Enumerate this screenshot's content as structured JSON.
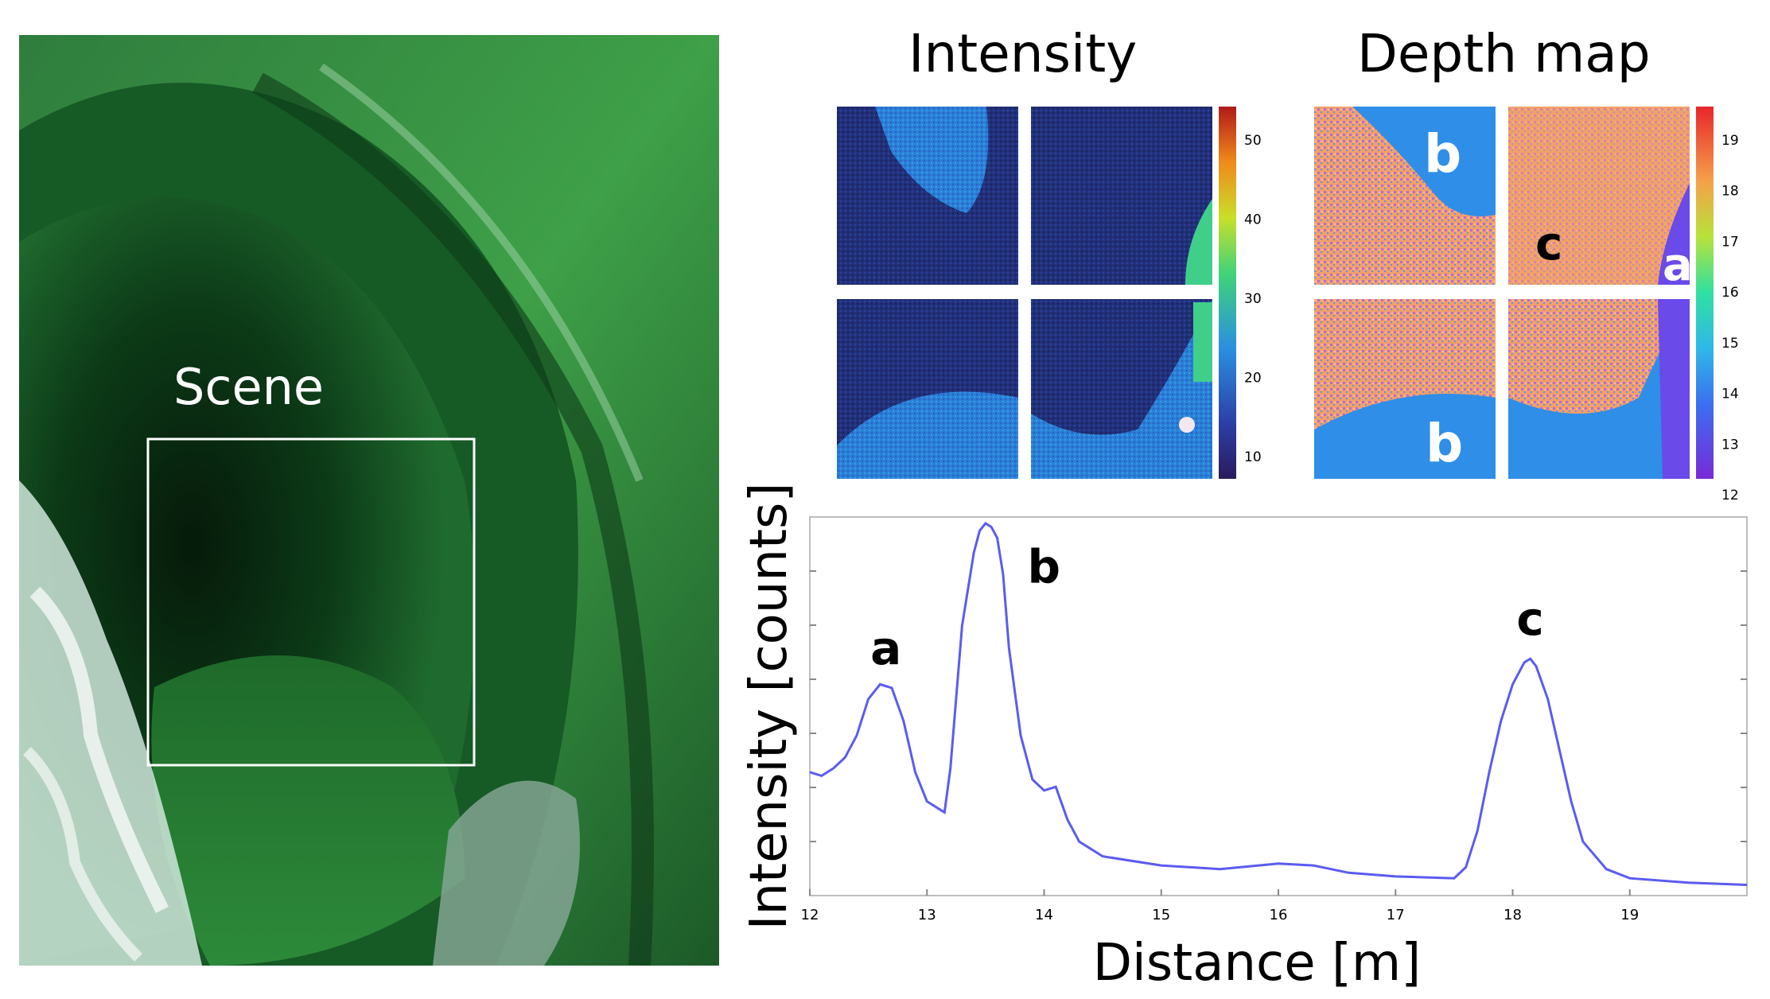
{
  "scene": {
    "label": "Scene",
    "description_colors": {
      "deep": "#0a2a12",
      "mid": "#1f6a2e",
      "bright": "#3fae4a",
      "foam": "#e9f5ef"
    }
  },
  "titles": {
    "intensity": "Intensity",
    "depth": "Depth map"
  },
  "intensity_colorbar": {
    "ticks": [
      "50",
      "40",
      "30",
      "20",
      "10"
    ]
  },
  "depth_colorbar": {
    "ticks": [
      "19",
      "18",
      "17",
      "16",
      "15",
      "14",
      "13",
      "12"
    ]
  },
  "depth_labels": {
    "tl": "b",
    "tr_c": "c",
    "tr_a": "a",
    "bl": "b"
  },
  "chart_data": {
    "type": "line",
    "title": "",
    "xlabel": "Distance [m]",
    "ylabel": "Intensity [counts]",
    "xlim": [
      12,
      20
    ],
    "ylim": [
      0,
      1
    ],
    "x_ticks": [
      "12",
      "13",
      "14",
      "15",
      "16",
      "17",
      "18",
      "19"
    ],
    "series_color": "#5b5bf0",
    "peaks": [
      {
        "label": "a",
        "x": 12.65
      },
      {
        "label": "b",
        "x": 13.55
      },
      {
        "label": "c",
        "x": 18.15
      }
    ],
    "series": [
      {
        "name": "intensity",
        "x": [
          12.0,
          12.1,
          12.2,
          12.3,
          12.4,
          12.5,
          12.6,
          12.7,
          12.8,
          12.9,
          13.0,
          13.1,
          13.15,
          13.2,
          13.3,
          13.4,
          13.45,
          13.5,
          13.55,
          13.6,
          13.65,
          13.7,
          13.8,
          13.9,
          14.0,
          14.1,
          14.2,
          14.3,
          14.5,
          15.0,
          15.5,
          16.0,
          16.3,
          16.6,
          17.0,
          17.5,
          17.6,
          17.7,
          17.8,
          17.9,
          18.0,
          18.1,
          18.15,
          18.2,
          18.3,
          18.4,
          18.5,
          18.6,
          18.8,
          19.0,
          19.5,
          20.0
        ],
        "y": [
          0.32,
          0.31,
          0.33,
          0.36,
          0.42,
          0.52,
          0.56,
          0.55,
          0.46,
          0.32,
          0.24,
          0.22,
          0.21,
          0.33,
          0.72,
          0.92,
          0.98,
          1.0,
          0.99,
          0.96,
          0.86,
          0.66,
          0.42,
          0.3,
          0.27,
          0.28,
          0.19,
          0.13,
          0.09,
          0.065,
          0.055,
          0.07,
          0.065,
          0.045,
          0.035,
          0.03,
          0.06,
          0.16,
          0.32,
          0.46,
          0.56,
          0.62,
          0.63,
          0.61,
          0.52,
          0.38,
          0.24,
          0.13,
          0.055,
          0.03,
          0.018,
          0.012
        ]
      }
    ]
  }
}
